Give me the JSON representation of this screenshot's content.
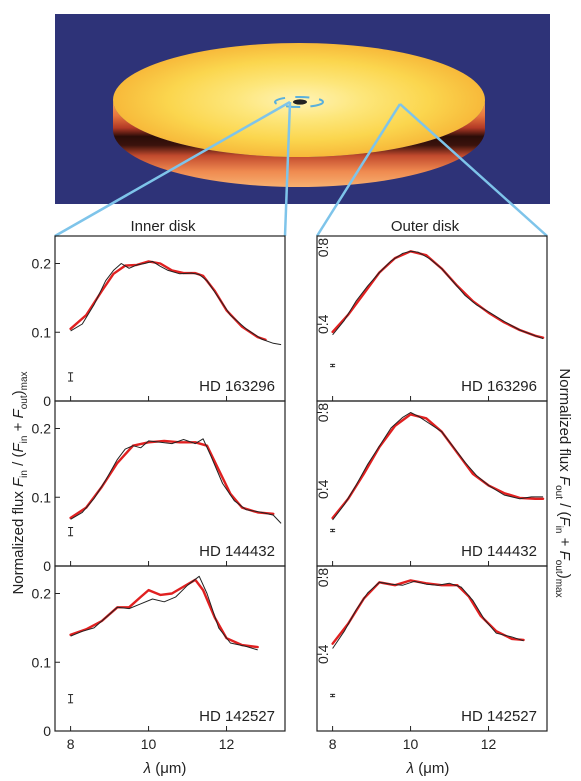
{
  "colors": {
    "background": "#2e3378",
    "model": "#e02020",
    "observed": "#222222",
    "connector": "#7ec4ea",
    "frame": "#222222"
  },
  "chart_data": {
    "type": "line",
    "columns": [
      {
        "title": "Inner disk",
        "ylim": [
          0,
          0.24
        ],
        "yticks": [
          "0",
          "0.1",
          "0.2"
        ],
        "ytick_values": [
          0,
          0.1,
          0.2
        ]
      },
      {
        "title": "Outer disk",
        "ylim": [
          0,
          0.86
        ],
        "yticks": [
          "0.4",
          "0.8"
        ],
        "ytick_values": [
          0.4,
          0.8
        ]
      }
    ],
    "rows": [
      {
        "star": "HD 163296"
      },
      {
        "star": "HD 144432"
      },
      {
        "star": "HD 142527"
      }
    ],
    "xlim": [
      7.6,
      13.5
    ],
    "xticks": [
      "8",
      "10",
      "12"
    ],
    "xtick_values": [
      8,
      10,
      12
    ],
    "xlabel": "λ (μm)",
    "ylabel_left": "Normalized flux F_in / (F_in + F_out)_max",
    "ylabel_right": "Normalized flux F_out / (F_in + F_out)_max",
    "panels": [
      {
        "row": 0,
        "col": 0,
        "errbar": [
          8.0,
          0.035,
          0.012
        ],
        "model": [
          [
            8.0,
            0.105
          ],
          [
            8.4,
            0.125
          ],
          [
            8.8,
            0.16
          ],
          [
            9.1,
            0.185
          ],
          [
            9.4,
            0.197
          ],
          [
            9.7,
            0.198
          ],
          [
            10.0,
            0.203
          ],
          [
            10.3,
            0.2
          ],
          [
            10.6,
            0.19
          ],
          [
            10.9,
            0.186
          ],
          [
            11.2,
            0.186
          ],
          [
            11.4,
            0.182
          ],
          [
            11.7,
            0.16
          ],
          [
            12.0,
            0.132
          ],
          [
            12.4,
            0.108
          ],
          [
            12.8,
            0.093
          ],
          [
            13.0,
            0.089
          ]
        ],
        "observed": [
          [
            8.0,
            0.102
          ],
          [
            8.3,
            0.112
          ],
          [
            8.6,
            0.14
          ],
          [
            8.9,
            0.175
          ],
          [
            9.1,
            0.19
          ],
          [
            9.3,
            0.2
          ],
          [
            9.5,
            0.193
          ],
          [
            9.7,
            0.198
          ],
          [
            9.9,
            0.2
          ],
          [
            10.1,
            0.203
          ],
          [
            10.3,
            0.196
          ],
          [
            10.5,
            0.19
          ],
          [
            10.8,
            0.185
          ],
          [
            11.1,
            0.186
          ],
          [
            11.3,
            0.184
          ],
          [
            11.5,
            0.175
          ],
          [
            11.8,
            0.15
          ],
          [
            12.1,
            0.125
          ],
          [
            12.5,
            0.105
          ],
          [
            12.9,
            0.09
          ],
          [
            13.2,
            0.084
          ],
          [
            13.4,
            0.082
          ]
        ]
      },
      {
        "row": 0,
        "col": 1,
        "errbar": [
          8.0,
          0.185,
          0.012
        ],
        "model": [
          [
            8.0,
            0.36
          ],
          [
            8.4,
            0.45
          ],
          [
            8.8,
            0.56
          ],
          [
            9.2,
            0.67
          ],
          [
            9.6,
            0.745
          ],
          [
            10.0,
            0.78
          ],
          [
            10.4,
            0.76
          ],
          [
            10.8,
            0.69
          ],
          [
            11.2,
            0.6
          ],
          [
            11.6,
            0.52
          ],
          [
            12.0,
            0.46
          ],
          [
            12.4,
            0.41
          ],
          [
            12.8,
            0.37
          ],
          [
            13.2,
            0.34
          ],
          [
            13.4,
            0.33
          ]
        ],
        "observed": [
          [
            8.0,
            0.345
          ],
          [
            8.3,
            0.42
          ],
          [
            8.6,
            0.52
          ],
          [
            8.9,
            0.6
          ],
          [
            9.2,
            0.67
          ],
          [
            9.5,
            0.73
          ],
          [
            9.8,
            0.77
          ],
          [
            10.0,
            0.78
          ],
          [
            10.2,
            0.775
          ],
          [
            10.5,
            0.74
          ],
          [
            10.8,
            0.69
          ],
          [
            11.1,
            0.62
          ],
          [
            11.4,
            0.55
          ],
          [
            11.7,
            0.5
          ],
          [
            12.0,
            0.465
          ],
          [
            12.4,
            0.415
          ],
          [
            12.8,
            0.37
          ],
          [
            13.2,
            0.34
          ],
          [
            13.4,
            0.325
          ]
        ]
      },
      {
        "row": 1,
        "col": 0,
        "errbar": [
          8.0,
          0.05,
          0.012
        ],
        "model": [
          [
            8.0,
            0.07
          ],
          [
            8.4,
            0.085
          ],
          [
            8.8,
            0.115
          ],
          [
            9.2,
            0.15
          ],
          [
            9.6,
            0.175
          ],
          [
            10.0,
            0.18
          ],
          [
            10.4,
            0.182
          ],
          [
            10.8,
            0.18
          ],
          [
            11.2,
            0.18
          ],
          [
            11.5,
            0.175
          ],
          [
            11.8,
            0.14
          ],
          [
            12.1,
            0.105
          ],
          [
            12.4,
            0.085
          ],
          [
            12.8,
            0.078
          ],
          [
            13.2,
            0.076
          ]
        ],
        "observed": [
          [
            8.0,
            0.068
          ],
          [
            8.3,
            0.078
          ],
          [
            8.6,
            0.098
          ],
          [
            8.9,
            0.125
          ],
          [
            9.2,
            0.155
          ],
          [
            9.4,
            0.17
          ],
          [
            9.6,
            0.175
          ],
          [
            9.8,
            0.172
          ],
          [
            10.0,
            0.182
          ],
          [
            10.3,
            0.18
          ],
          [
            10.6,
            0.178
          ],
          [
            10.9,
            0.184
          ],
          [
            11.2,
            0.178
          ],
          [
            11.4,
            0.185
          ],
          [
            11.6,
            0.16
          ],
          [
            11.9,
            0.12
          ],
          [
            12.2,
            0.095
          ],
          [
            12.5,
            0.082
          ],
          [
            12.9,
            0.078
          ],
          [
            13.2,
            0.074
          ],
          [
            13.4,
            0.062
          ]
        ]
      },
      {
        "row": 1,
        "col": 1,
        "errbar": [
          8.0,
          0.185,
          0.012
        ],
        "model": [
          [
            8.0,
            0.25
          ],
          [
            8.4,
            0.35
          ],
          [
            8.8,
            0.48
          ],
          [
            9.2,
            0.62
          ],
          [
            9.6,
            0.73
          ],
          [
            10.0,
            0.79
          ],
          [
            10.4,
            0.77
          ],
          [
            10.8,
            0.7
          ],
          [
            11.2,
            0.59
          ],
          [
            11.6,
            0.48
          ],
          [
            12.0,
            0.42
          ],
          [
            12.4,
            0.38
          ],
          [
            12.8,
            0.355
          ],
          [
            13.2,
            0.35
          ],
          [
            13.4,
            0.35
          ]
        ],
        "observed": [
          [
            8.0,
            0.24
          ],
          [
            8.3,
            0.32
          ],
          [
            8.6,
            0.42
          ],
          [
            8.9,
            0.53
          ],
          [
            9.2,
            0.625
          ],
          [
            9.5,
            0.72
          ],
          [
            9.8,
            0.775
          ],
          [
            10.0,
            0.8
          ],
          [
            10.2,
            0.78
          ],
          [
            10.5,
            0.74
          ],
          [
            10.8,
            0.7
          ],
          [
            11.1,
            0.62
          ],
          [
            11.4,
            0.54
          ],
          [
            11.7,
            0.47
          ],
          [
            12.0,
            0.42
          ],
          [
            12.4,
            0.37
          ],
          [
            12.8,
            0.35
          ],
          [
            13.1,
            0.36
          ],
          [
            13.4,
            0.36
          ]
        ]
      },
      {
        "row": 2,
        "col": 0,
        "errbar": [
          8.0,
          0.047,
          0.012
        ],
        "model": [
          [
            8.0,
            0.14
          ],
          [
            8.4,
            0.148
          ],
          [
            8.8,
            0.16
          ],
          [
            9.2,
            0.18
          ],
          [
            9.5,
            0.18
          ],
          [
            9.8,
            0.195
          ],
          [
            10.0,
            0.205
          ],
          [
            10.3,
            0.198
          ],
          [
            10.6,
            0.2
          ],
          [
            10.9,
            0.21
          ],
          [
            11.2,
            0.22
          ],
          [
            11.4,
            0.205
          ],
          [
            11.7,
            0.165
          ],
          [
            12.0,
            0.135
          ],
          [
            12.4,
            0.125
          ],
          [
            12.8,
            0.122
          ]
        ],
        "observed": [
          [
            8.0,
            0.138
          ],
          [
            8.3,
            0.145
          ],
          [
            8.6,
            0.15
          ],
          [
            8.9,
            0.165
          ],
          [
            9.2,
            0.18
          ],
          [
            9.5,
            0.178
          ],
          [
            9.8,
            0.185
          ],
          [
            10.1,
            0.192
          ],
          [
            10.4,
            0.188
          ],
          [
            10.7,
            0.195
          ],
          [
            11.0,
            0.212
          ],
          [
            11.3,
            0.225
          ],
          [
            11.5,
            0.2
          ],
          [
            11.8,
            0.15
          ],
          [
            12.1,
            0.128
          ],
          [
            12.5,
            0.123
          ],
          [
            12.8,
            0.118
          ]
        ]
      },
      {
        "row": 2,
        "col": 1,
        "errbar": [
          8.0,
          0.185,
          0.012
        ],
        "model": [
          [
            8.0,
            0.455
          ],
          [
            8.4,
            0.56
          ],
          [
            8.8,
            0.69
          ],
          [
            9.2,
            0.775
          ],
          [
            9.6,
            0.76
          ],
          [
            10.0,
            0.785
          ],
          [
            10.4,
            0.77
          ],
          [
            10.8,
            0.76
          ],
          [
            11.2,
            0.76
          ],
          [
            11.5,
            0.7
          ],
          [
            11.8,
            0.6
          ],
          [
            12.2,
            0.52
          ],
          [
            12.6,
            0.48
          ],
          [
            12.9,
            0.475
          ]
        ],
        "observed": [
          [
            8.0,
            0.43
          ],
          [
            8.3,
            0.52
          ],
          [
            8.6,
            0.63
          ],
          [
            8.9,
            0.72
          ],
          [
            9.2,
            0.775
          ],
          [
            9.5,
            0.765
          ],
          [
            9.8,
            0.76
          ],
          [
            10.1,
            0.78
          ],
          [
            10.4,
            0.765
          ],
          [
            10.7,
            0.76
          ],
          [
            11.0,
            0.77
          ],
          [
            11.3,
            0.75
          ],
          [
            11.6,
            0.68
          ],
          [
            11.9,
            0.58
          ],
          [
            12.2,
            0.51
          ],
          [
            12.6,
            0.49
          ],
          [
            12.9,
            0.47
          ]
        ]
      }
    ]
  }
}
